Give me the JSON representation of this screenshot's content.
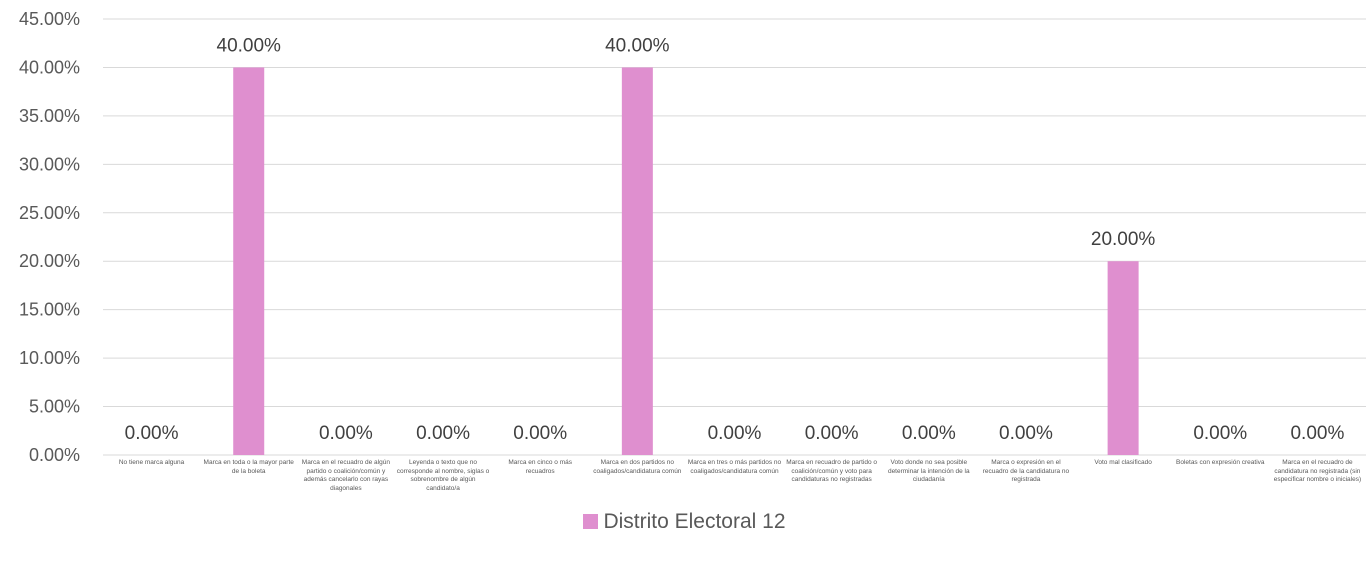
{
  "chart_data": {
    "type": "bar",
    "categories": [
      "No tiene marca alguna",
      "Marca en toda o la mayor parte de la boleta",
      "Marca en el recuadro de algún partido o coalición/común y además cancelarlo con rayas diagonales",
      "Leyenda o texto que no corresponde al nombre, siglas o sobrenombre de algún candidato/a",
      "Marca en cinco o más recuadros",
      "Marca en dos partidos no coaligados/candidatura común",
      "Marca en tres o más partidos no coaligados/candidatura común",
      "Marca en recuadro de partido o coalición/común y voto para candidaturas no registradas",
      "Voto donde no sea posible determinar la intención de la ciudadanía",
      "Marca o expresión en el recuadro de la candidatura no registrada",
      "Voto mal clasificado",
      "Boletas con expresión creativa",
      "Marca en el recuadro de candidatura no registrada (sin especificar nombre o iniciales)"
    ],
    "series": [
      {
        "name": "Distrito Electoral 12",
        "values": [
          0,
          40,
          0,
          0,
          0,
          40,
          0,
          0,
          0,
          0,
          20,
          0,
          0
        ],
        "data_labels": [
          "0.00%",
          "40.00%",
          "0.00%",
          "0.00%",
          "0.00%",
          "40.00%",
          "0.00%",
          "0.00%",
          "0.00%",
          "0.00%",
          "20.00%",
          "0.00%",
          "0.00%"
        ],
        "color": "#df8fcf"
      }
    ],
    "y_ticks": [
      "0.00%",
      "5.00%",
      "10.00%",
      "15.00%",
      "20.00%",
      "25.00%",
      "30.00%",
      "35.00%",
      "40.00%",
      "45.00%"
    ],
    "ylim": [
      0,
      45
    ],
    "grid": true,
    "legend_position": "bottom"
  }
}
